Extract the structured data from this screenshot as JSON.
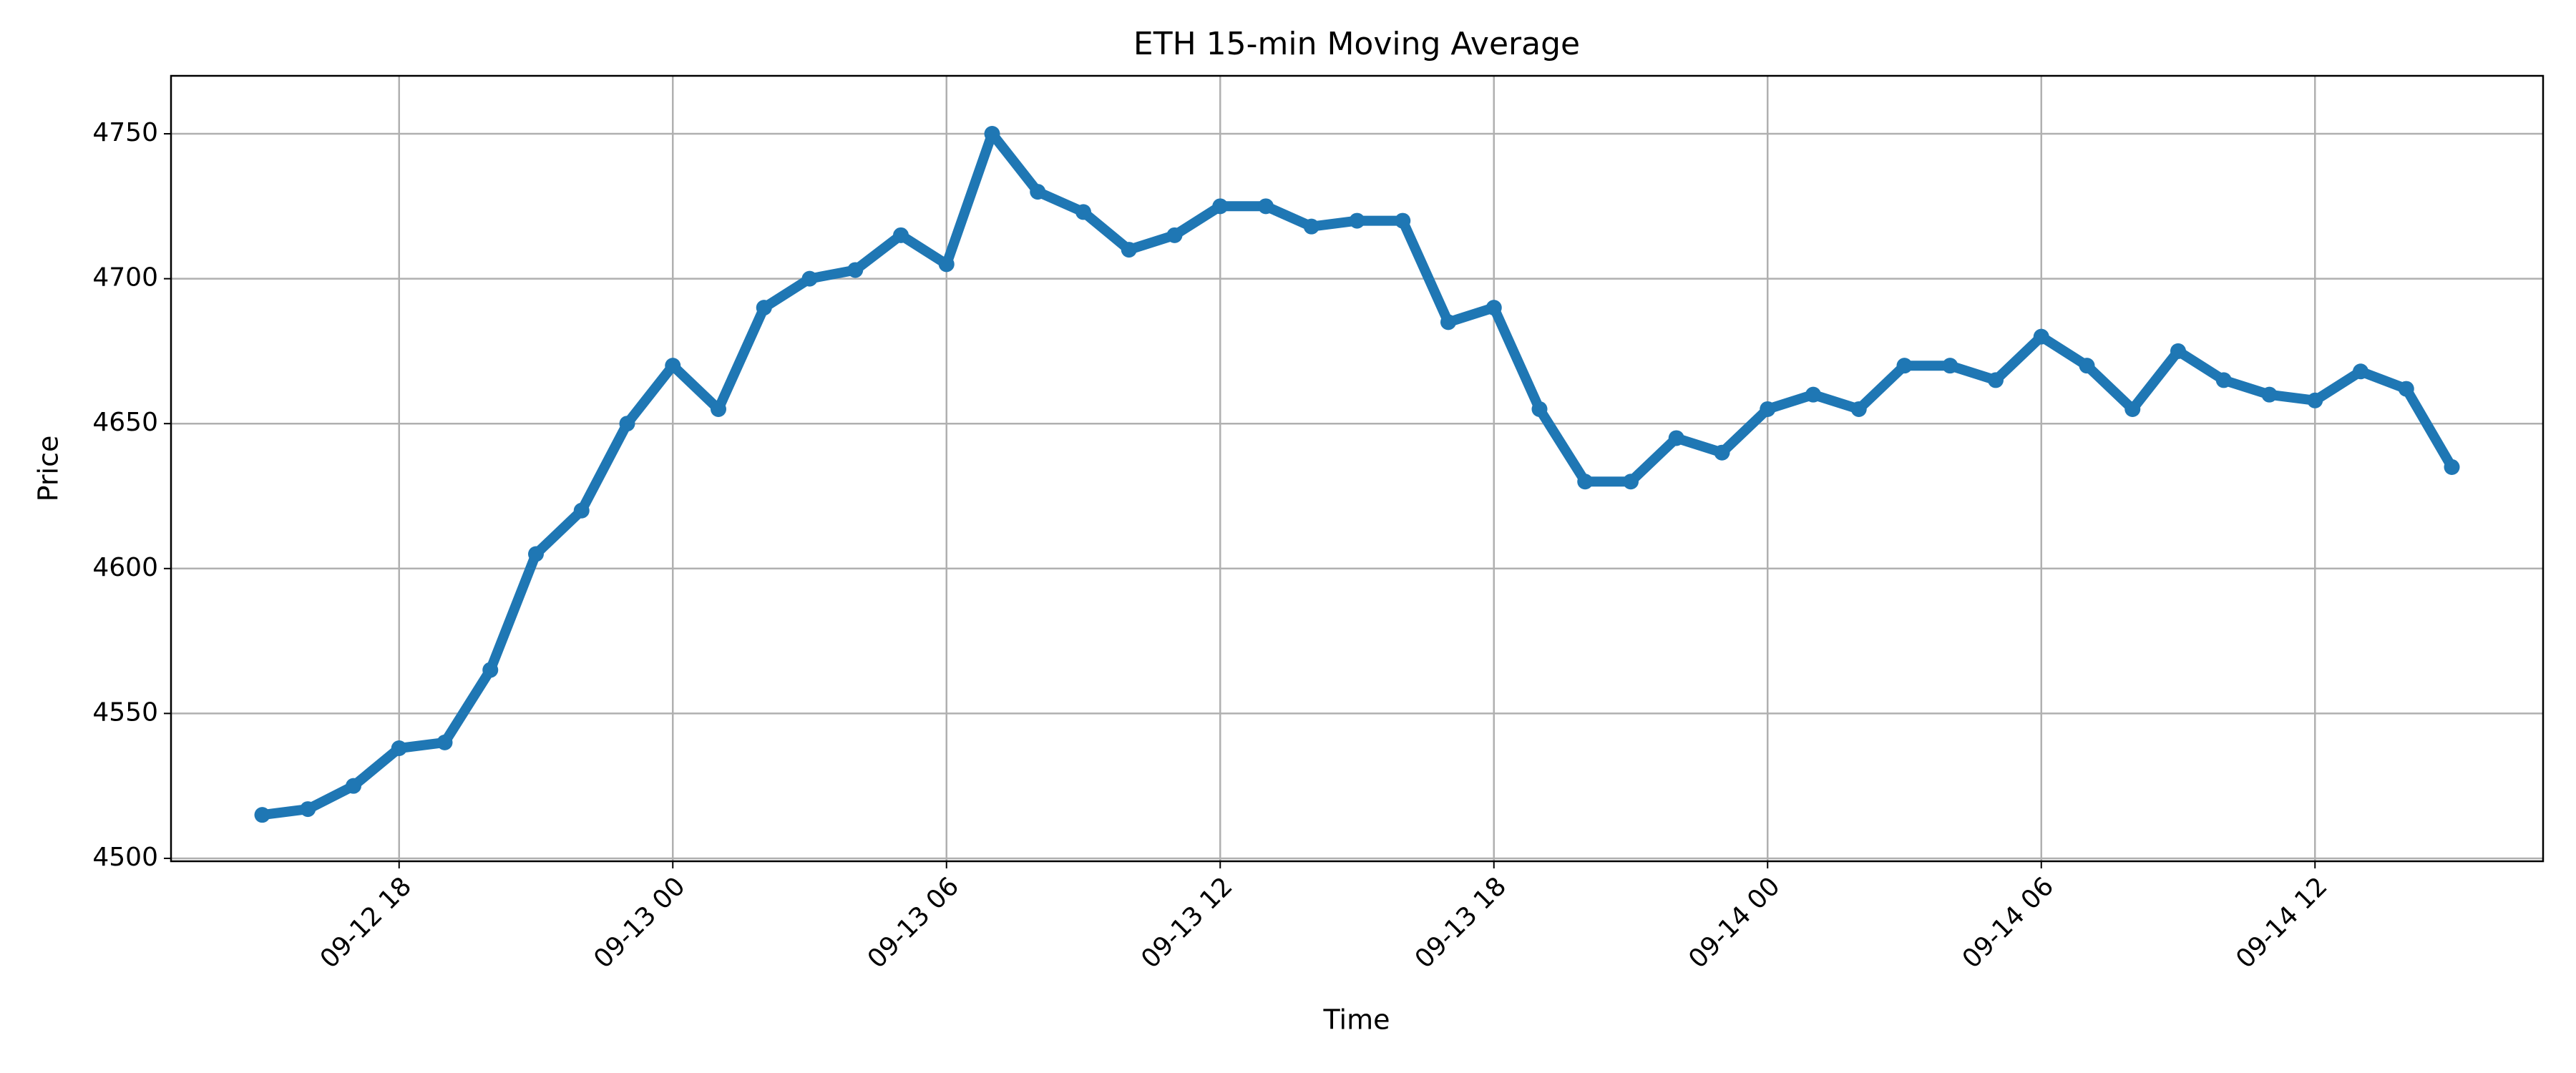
{
  "chart_data": {
    "type": "line",
    "title": "ETH 15-min Moving Average",
    "x_label": "Time",
    "y_label": "Price",
    "x": [
      "09-12 15",
      "09-12 16",
      "09-12 17",
      "09-12 18",
      "09-12 19",
      "09-12 20",
      "09-12 21",
      "09-12 22",
      "09-12 23",
      "09-13 00",
      "09-13 01",
      "09-13 02",
      "09-13 03",
      "09-13 04",
      "09-13 05",
      "09-13 06",
      "09-13 07",
      "09-13 08",
      "09-13 09",
      "09-13 10",
      "09-13 11",
      "09-13 12",
      "09-13 13",
      "09-13 14",
      "09-13 15",
      "09-13 16",
      "09-13 17",
      "09-13 18",
      "09-13 19",
      "09-13 20",
      "09-13 21",
      "09-13 22",
      "09-13 23",
      "09-14 00",
      "09-14 01",
      "09-14 02",
      "09-14 03",
      "09-14 04",
      "09-14 05",
      "09-14 06",
      "09-14 07",
      "09-14 08",
      "09-14 09",
      "09-14 10",
      "09-14 11",
      "09-14 12",
      "09-14 13",
      "09-14 14",
      "09-14 15"
    ],
    "series": [
      {
        "name": "ETH",
        "color": "#1f77b4",
        "values": [
          4515,
          4517,
          4525,
          4538,
          4540,
          4565,
          4605,
          4620,
          4650,
          4670,
          4655,
          4690,
          4700,
          4703,
          4715,
          4705,
          4750,
          4730,
          4723,
          4710,
          4715,
          4725,
          4725,
          4718,
          4720,
          4720,
          4685,
          4690,
          4655,
          4630,
          4630,
          4645,
          4640,
          4655,
          4660,
          4655,
          4670,
          4670,
          4665,
          4680,
          4670,
          4655,
          4675,
          4665,
          4660,
          4658,
          4668,
          4662,
          4635
        ]
      }
    ],
    "xlim": [
      "09-12 13",
      "09-14 17"
    ],
    "xticks": [
      "09-12 18",
      "09-13 00",
      "09-13 06",
      "09-13 12",
      "09-13 18",
      "09-14 00",
      "09-14 06",
      "09-14 12"
    ],
    "ylim": [
      4499,
      4770
    ],
    "yticks": [
      4500,
      4550,
      4600,
      4650,
      4700,
      4750
    ],
    "grid": true
  }
}
